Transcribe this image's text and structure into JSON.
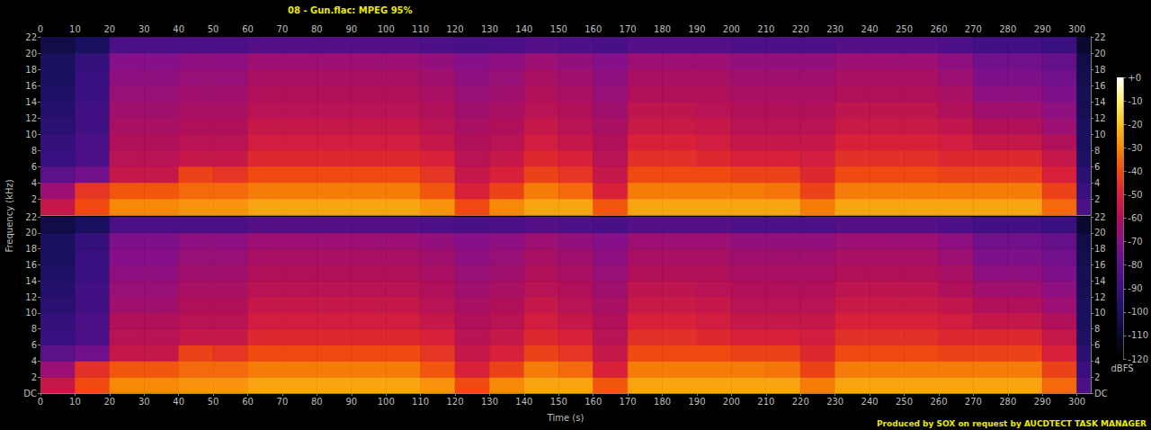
{
  "chart_data": {
    "type": "heatmap",
    "title": "08 - Gun.flac: MPEG 95%",
    "x_label": "Time (s)",
    "y_label": "Frequency (kHz)",
    "annotation": "Produced by SOX on request by AUCDTECT TASK MANAGER",
    "xlim": [
      0,
      304
    ],
    "xticks": [
      0,
      10,
      20,
      30,
      40,
      50,
      60,
      70,
      80,
      90,
      100,
      110,
      120,
      130,
      140,
      150,
      160,
      170,
      180,
      190,
      200,
      210,
      220,
      230,
      240,
      250,
      260,
      270,
      280,
      290,
      300
    ],
    "ylim": [
      0,
      22
    ],
    "time_bins": [
      0,
      10,
      20,
      30,
      40,
      50,
      60,
      70,
      80,
      90,
      100,
      110,
      120,
      130,
      140,
      150,
      160,
      170,
      180,
      190,
      200,
      210,
      220,
      230,
      240,
      250,
      260,
      270,
      280,
      290,
      300,
      304
    ],
    "freq_bins": [
      0,
      2,
      4,
      6,
      8,
      10,
      12,
      14,
      16,
      18,
      20,
      22
    ],
    "colorbar": {
      "label": "dBFS",
      "range": [
        -120,
        0
      ],
      "ticks": [
        {
          "value": 0,
          "label": "+0"
        },
        -10,
        -20,
        -30,
        -40,
        -50,
        -60,
        -70,
        -80,
        -90,
        -100,
        -110,
        -120
      ]
    },
    "panels": [
      {
        "yticks": [
          2,
          4,
          6,
          8,
          10,
          12,
          14,
          16,
          18,
          20,
          22
        ],
        "cells": [
          [
            -55,
            -40,
            -30,
            -30,
            -28,
            -28,
            -25,
            -25,
            -25,
            -25,
            -25,
            -28,
            -40,
            -30,
            -25,
            -25,
            -38,
            -25,
            -25,
            -25,
            -25,
            -25,
            -32,
            -25,
            -25,
            -25,
            -25,
            -25,
            -25,
            -35,
            -85
          ],
          [
            -65,
            -45,
            -38,
            -38,
            -35,
            -35,
            -32,
            -32,
            -32,
            -32,
            -32,
            -38,
            -50,
            -42,
            -32,
            -35,
            -50,
            -32,
            -32,
            -32,
            -32,
            -33,
            -42,
            -32,
            -32,
            -32,
            -32,
            -32,
            -32,
            -42,
            -90
          ],
          [
            -80,
            -75,
            -55,
            -55,
            -42,
            -45,
            -40,
            -40,
            -40,
            -40,
            -40,
            -45,
            -55,
            -50,
            -42,
            -45,
            -55,
            -40,
            -40,
            -40,
            -42,
            -42,
            -48,
            -40,
            -40,
            -40,
            -42,
            -42,
            -42,
            -50,
            -95
          ],
          [
            -90,
            -85,
            -58,
            -58,
            -55,
            -55,
            -48,
            -48,
            -48,
            -48,
            -48,
            -50,
            -58,
            -55,
            -48,
            -50,
            -58,
            -46,
            -46,
            -48,
            -50,
            -50,
            -52,
            -46,
            -46,
            -46,
            -48,
            -48,
            -48,
            -55,
            -98
          ],
          [
            -92,
            -85,
            -60,
            -60,
            -58,
            -58,
            -52,
            -52,
            -52,
            -52,
            -52,
            -55,
            -60,
            -58,
            -52,
            -55,
            -60,
            -50,
            -50,
            -52,
            -55,
            -55,
            -55,
            -50,
            -50,
            -50,
            -52,
            -55,
            -55,
            -60,
            -100
          ],
          [
            -95,
            -88,
            -62,
            -62,
            -60,
            -60,
            -55,
            -55,
            -55,
            -55,
            -55,
            -58,
            -62,
            -60,
            -55,
            -58,
            -62,
            -54,
            -54,
            -55,
            -58,
            -58,
            -58,
            -54,
            -54,
            -54,
            -56,
            -60,
            -60,
            -65,
            -100
          ],
          [
            -97,
            -88,
            -64,
            -64,
            -62,
            -62,
            -58,
            -58,
            -58,
            -58,
            -58,
            -60,
            -64,
            -62,
            -58,
            -60,
            -64,
            -57,
            -57,
            -58,
            -60,
            -60,
            -60,
            -57,
            -57,
            -57,
            -60,
            -64,
            -64,
            -68,
            -102
          ],
          [
            -98,
            -90,
            -66,
            -66,
            -64,
            -64,
            -60,
            -60,
            -60,
            -60,
            -60,
            -62,
            -66,
            -64,
            -60,
            -62,
            -66,
            -60,
            -60,
            -60,
            -62,
            -62,
            -62,
            -60,
            -60,
            -60,
            -62,
            -68,
            -68,
            -72,
            -102
          ],
          [
            -100,
            -90,
            -68,
            -68,
            -66,
            -66,
            -62,
            -62,
            -62,
            -62,
            -62,
            -64,
            -68,
            -66,
            -62,
            -64,
            -68,
            -62,
            -62,
            -62,
            -64,
            -64,
            -64,
            -62,
            -62,
            -62,
            -65,
            -72,
            -72,
            -75,
            -104
          ],
          [
            -100,
            -92,
            -70,
            -70,
            -68,
            -68,
            -65,
            -65,
            -65,
            -65,
            -65,
            -67,
            -70,
            -68,
            -65,
            -67,
            -70,
            -65,
            -65,
            -65,
            -67,
            -67,
            -67,
            -65,
            -65,
            -65,
            -68,
            -75,
            -75,
            -78,
            -105
          ],
          [
            -105,
            -100,
            -85,
            -85,
            -85,
            -85,
            -82,
            -82,
            -82,
            -82,
            -82,
            -84,
            -86,
            -85,
            -82,
            -84,
            -86,
            -82,
            -82,
            -82,
            -84,
            -84,
            -84,
            -82,
            -82,
            -82,
            -84,
            -88,
            -88,
            -90,
            -110
          ]
        ]
      },
      {
        "yticks": [
          {
            "value": 0,
            "label": "DC"
          },
          2,
          4,
          6,
          8,
          10,
          12,
          14,
          16,
          18,
          20,
          22
        ],
        "cells": [
          [
            -55,
            -40,
            -30,
            -30,
            -28,
            -28,
            -25,
            -25,
            -25,
            -25,
            -25,
            -28,
            -40,
            -30,
            -25,
            -25,
            -38,
            -25,
            -25,
            -25,
            -25,
            -25,
            -32,
            -25,
            -25,
            -25,
            -25,
            -25,
            -25,
            -35,
            -85
          ],
          [
            -65,
            -46,
            -38,
            -38,
            -35,
            -35,
            -32,
            -32,
            -32,
            -32,
            -32,
            -38,
            -50,
            -42,
            -32,
            -35,
            -50,
            -32,
            -32,
            -32,
            -32,
            -33,
            -42,
            -32,
            -32,
            -32,
            -32,
            -32,
            -32,
            -42,
            -90
          ],
          [
            -80,
            -75,
            -55,
            -55,
            -42,
            -45,
            -40,
            -40,
            -40,
            -40,
            -40,
            -45,
            -55,
            -50,
            -42,
            -45,
            -55,
            -40,
            -40,
            -40,
            -42,
            -42,
            -48,
            -40,
            -40,
            -40,
            -42,
            -42,
            -42,
            -50,
            -95
          ],
          [
            -90,
            -85,
            -58,
            -58,
            -55,
            -55,
            -48,
            -48,
            -48,
            -48,
            -48,
            -50,
            -58,
            -55,
            -48,
            -50,
            -58,
            -46,
            -46,
            -48,
            -50,
            -50,
            -52,
            -46,
            -46,
            -46,
            -48,
            -48,
            -48,
            -55,
            -98
          ],
          [
            -92,
            -85,
            -60,
            -60,
            -58,
            -58,
            -52,
            -52,
            -52,
            -52,
            -52,
            -55,
            -60,
            -58,
            -52,
            -55,
            -60,
            -50,
            -50,
            -52,
            -55,
            -55,
            -55,
            -50,
            -50,
            -50,
            -52,
            -55,
            -55,
            -60,
            -100
          ],
          [
            -95,
            -88,
            -64,
            -64,
            -60,
            -60,
            -55,
            -55,
            -55,
            -55,
            -55,
            -58,
            -62,
            -60,
            -55,
            -58,
            -62,
            -54,
            -54,
            -55,
            -58,
            -58,
            -58,
            -54,
            -54,
            -54,
            -56,
            -60,
            -60,
            -65,
            -100
          ],
          [
            -97,
            -88,
            -66,
            -66,
            -62,
            -62,
            -58,
            -58,
            -58,
            -58,
            -58,
            -60,
            -64,
            -62,
            -58,
            -60,
            -64,
            -57,
            -57,
            -58,
            -60,
            -60,
            -60,
            -57,
            -57,
            -57,
            -60,
            -64,
            -64,
            -68,
            -102
          ],
          [
            -98,
            -90,
            -68,
            -68,
            -64,
            -64,
            -60,
            -60,
            -60,
            -60,
            -60,
            -62,
            -66,
            -64,
            -60,
            -62,
            -66,
            -60,
            -60,
            -60,
            -62,
            -62,
            -62,
            -60,
            -60,
            -60,
            -62,
            -68,
            -68,
            -72,
            -102
          ],
          [
            -100,
            -90,
            -70,
            -70,
            -66,
            -66,
            -62,
            -62,
            -62,
            -62,
            -62,
            -64,
            -68,
            -66,
            -62,
            -64,
            -68,
            -62,
            -62,
            -62,
            -64,
            -64,
            -64,
            -62,
            -62,
            -62,
            -65,
            -72,
            -72,
            -75,
            -104
          ],
          [
            -100,
            -92,
            -72,
            -72,
            -68,
            -68,
            -65,
            -65,
            -65,
            -65,
            -65,
            -67,
            -70,
            -68,
            -65,
            -67,
            -70,
            -65,
            -65,
            -65,
            -67,
            -67,
            -67,
            -65,
            -65,
            -65,
            -68,
            -75,
            -75,
            -78,
            -105
          ],
          [
            -105,
            -100,
            -85,
            -85,
            -85,
            -85,
            -82,
            -82,
            -82,
            -82,
            -82,
            -84,
            -86,
            -85,
            -82,
            -84,
            -86,
            -82,
            -82,
            -82,
            -84,
            -84,
            -84,
            -82,
            -82,
            -82,
            -84,
            -88,
            -88,
            -90,
            -110
          ]
        ]
      }
    ]
  }
}
